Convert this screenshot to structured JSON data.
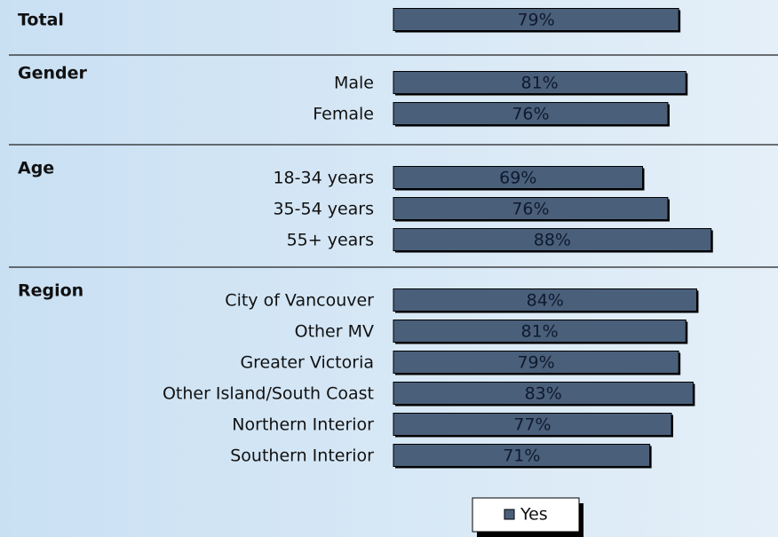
{
  "chart_data": {
    "type": "bar",
    "orientation": "horizontal",
    "color": "#4a5f7a",
    "series_name": "Yes",
    "groups": [
      {
        "name": "Total",
        "categories": [
          null
        ],
        "values": [
          79
        ],
        "value_labels": [
          "79%"
        ]
      },
      {
        "name": "Gender",
        "categories": [
          "Male",
          "Female"
        ],
        "values": [
          81,
          76
        ],
        "value_labels": [
          "81%",
          "76%"
        ]
      },
      {
        "name": "Age",
        "categories": [
          "18-34 years",
          "35-54 years",
          "55+ years"
        ],
        "values": [
          69,
          76,
          88
        ],
        "value_labels": [
          "69%",
          "76%",
          "88%"
        ]
      },
      {
        "name": "Region",
        "categories": [
          "City of Vancouver",
          "Other MV",
          "Greater Victoria",
          "Other Island/South Coast",
          "Northern Interior",
          "Southern Interior"
        ],
        "values": [
          84,
          81,
          79,
          83,
          77,
          71
        ],
        "value_labels": [
          "84%",
          "81%",
          "79%",
          "83%",
          "77%",
          "71%"
        ]
      }
    ]
  }
}
